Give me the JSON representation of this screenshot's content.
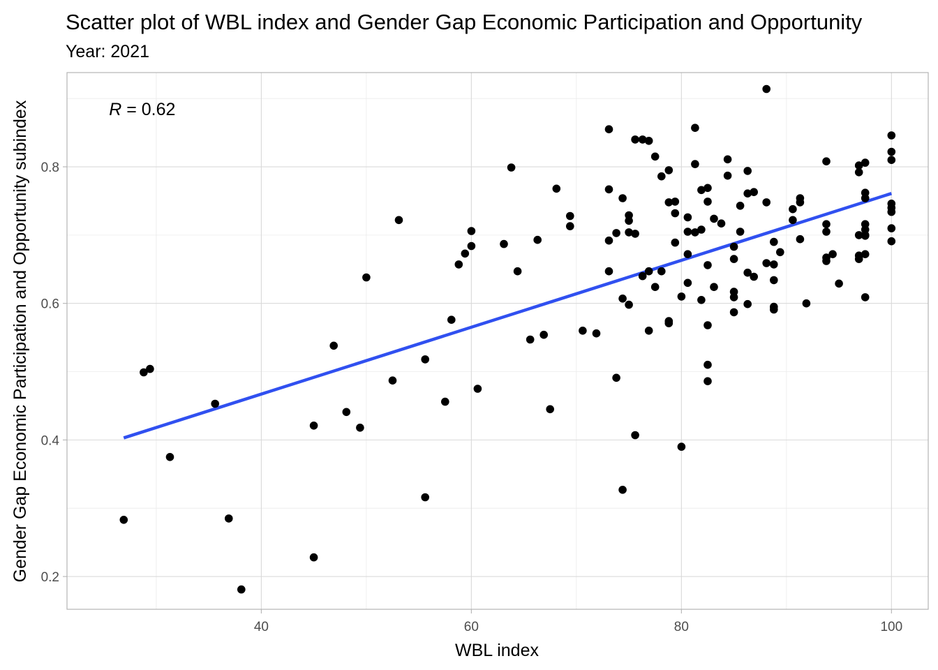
{
  "chart_data": {
    "type": "scatter",
    "title": "Scatter plot of WBL index and Gender Gap Economic Participation and Opportunity",
    "subtitle": "Year: 2021",
    "xlabel": "WBL index",
    "ylabel": "Gender Gap Economic Participation and Opportunity subindex",
    "xlim": [
      21.5,
      103.5
    ],
    "ylim": [
      0.152,
      0.938
    ],
    "x_ticks": [
      40,
      60,
      80,
      100
    ],
    "x_tick_labels": [
      "40",
      "60",
      "80",
      "100"
    ],
    "y_ticks": [
      0.2,
      0.4,
      0.6,
      0.8
    ],
    "y_tick_labels": [
      "0.2",
      "0.4",
      "0.6",
      "0.8"
    ],
    "grid": true,
    "annotation": {
      "label": "R",
      "text": " = 0.62",
      "x": 25.5,
      "y": 0.885
    },
    "trend_line": {
      "color": "#3050f0",
      "x": [
        26.9,
        100
      ],
      "y": [
        0.403,
        0.761
      ]
    },
    "point_color": "#000000",
    "points": [
      [
        26.9,
        0.283
      ],
      [
        28.8,
        0.499
      ],
      [
        29.4,
        0.504
      ],
      [
        31.3,
        0.375
      ],
      [
        35.6,
        0.453
      ],
      [
        36.9,
        0.285
      ],
      [
        38.1,
        0.181
      ],
      [
        45.0,
        0.421
      ],
      [
        45.0,
        0.228
      ],
      [
        46.9,
        0.538
      ],
      [
        48.1,
        0.441
      ],
      [
        49.4,
        0.418
      ],
      [
        50.0,
        0.638
      ],
      [
        52.5,
        0.487
      ],
      [
        53.1,
        0.722
      ],
      [
        55.6,
        0.518
      ],
      [
        55.6,
        0.316
      ],
      [
        57.5,
        0.456
      ],
      [
        58.1,
        0.576
      ],
      [
        58.8,
        0.657
      ],
      [
        59.4,
        0.673
      ],
      [
        60.0,
        0.706
      ],
      [
        60.0,
        0.684
      ],
      [
        60.6,
        0.475
      ],
      [
        63.1,
        0.687
      ],
      [
        63.8,
        0.799
      ],
      [
        64.4,
        0.647
      ],
      [
        65.6,
        0.547
      ],
      [
        66.3,
        0.693
      ],
      [
        66.9,
        0.554
      ],
      [
        67.5,
        0.445
      ],
      [
        68.1,
        0.768
      ],
      [
        69.4,
        0.728
      ],
      [
        69.4,
        0.713
      ],
      [
        70.6,
        0.56
      ],
      [
        71.9,
        0.556
      ],
      [
        73.1,
        0.855
      ],
      [
        73.1,
        0.767
      ],
      [
        73.1,
        0.692
      ],
      [
        73.1,
        0.647
      ],
      [
        73.8,
        0.703
      ],
      [
        73.8,
        0.491
      ],
      [
        74.4,
        0.754
      ],
      [
        74.4,
        0.607
      ],
      [
        74.4,
        0.327
      ],
      [
        75.0,
        0.729
      ],
      [
        75.0,
        0.721
      ],
      [
        75.0,
        0.704
      ],
      [
        75.0,
        0.598
      ],
      [
        75.6,
        0.84
      ],
      [
        75.6,
        0.702
      ],
      [
        75.6,
        0.407
      ],
      [
        76.3,
        0.84
      ],
      [
        76.3,
        0.64
      ],
      [
        76.9,
        0.838
      ],
      [
        76.9,
        0.647
      ],
      [
        76.9,
        0.56
      ],
      [
        77.5,
        0.815
      ],
      [
        77.5,
        0.624
      ],
      [
        78.1,
        0.786
      ],
      [
        78.1,
        0.647
      ],
      [
        78.8,
        0.795
      ],
      [
        78.8,
        0.748
      ],
      [
        78.8,
        0.574
      ],
      [
        78.8,
        0.571
      ],
      [
        79.4,
        0.749
      ],
      [
        79.4,
        0.732
      ],
      [
        79.4,
        0.689
      ],
      [
        80.0,
        0.61
      ],
      [
        80.0,
        0.39
      ],
      [
        80.6,
        0.726
      ],
      [
        80.6,
        0.705
      ],
      [
        80.6,
        0.672
      ],
      [
        80.6,
        0.63
      ],
      [
        81.3,
        0.857
      ],
      [
        81.3,
        0.804
      ],
      [
        81.3,
        0.704
      ],
      [
        81.9,
        0.766
      ],
      [
        81.9,
        0.708
      ],
      [
        81.9,
        0.605
      ],
      [
        82.5,
        0.769
      ],
      [
        82.5,
        0.749
      ],
      [
        82.5,
        0.656
      ],
      [
        82.5,
        0.568
      ],
      [
        82.5,
        0.51
      ],
      [
        82.5,
        0.486
      ],
      [
        83.1,
        0.724
      ],
      [
        83.1,
        0.624
      ],
      [
        83.8,
        0.717
      ],
      [
        84.4,
        0.811
      ],
      [
        84.4,
        0.787
      ],
      [
        85.0,
        0.683
      ],
      [
        85.0,
        0.665
      ],
      [
        85.0,
        0.617
      ],
      [
        85.0,
        0.609
      ],
      [
        85.0,
        0.587
      ],
      [
        85.6,
        0.743
      ],
      [
        85.6,
        0.705
      ],
      [
        86.3,
        0.794
      ],
      [
        86.3,
        0.761
      ],
      [
        86.3,
        0.645
      ],
      [
        86.3,
        0.599
      ],
      [
        86.9,
        0.763
      ],
      [
        86.9,
        0.639
      ],
      [
        88.1,
        0.914
      ],
      [
        88.1,
        0.748
      ],
      [
        88.1,
        0.659
      ],
      [
        88.8,
        0.69
      ],
      [
        88.8,
        0.657
      ],
      [
        88.8,
        0.634
      ],
      [
        88.8,
        0.595
      ],
      [
        88.8,
        0.591
      ],
      [
        89.4,
        0.675
      ],
      [
        90.6,
        0.738
      ],
      [
        90.6,
        0.722
      ],
      [
        91.3,
        0.754
      ],
      [
        91.3,
        0.748
      ],
      [
        91.3,
        0.694
      ],
      [
        91.9,
        0.6
      ],
      [
        93.8,
        0.808
      ],
      [
        93.8,
        0.716
      ],
      [
        93.8,
        0.705
      ],
      [
        93.8,
        0.667
      ],
      [
        93.8,
        0.662
      ],
      [
        94.4,
        0.672
      ],
      [
        95.0,
        0.629
      ],
      [
        96.9,
        0.802
      ],
      [
        96.9,
        0.792
      ],
      [
        96.9,
        0.7
      ],
      [
        96.9,
        0.67
      ],
      [
        96.9,
        0.665
      ],
      [
        97.5,
        0.806
      ],
      [
        97.5,
        0.762
      ],
      [
        97.5,
        0.754
      ],
      [
        97.5,
        0.716
      ],
      [
        97.5,
        0.708
      ],
      [
        97.5,
        0.7
      ],
      [
        97.5,
        0.699
      ],
      [
        97.5,
        0.672
      ],
      [
        97.5,
        0.609
      ],
      [
        100.0,
        0.846
      ],
      [
        100.0,
        0.822
      ],
      [
        100.0,
        0.81
      ],
      [
        100.0,
        0.746
      ],
      [
        100.0,
        0.74
      ],
      [
        100.0,
        0.734
      ],
      [
        100.0,
        0.71
      ],
      [
        100.0,
        0.691
      ]
    ]
  }
}
